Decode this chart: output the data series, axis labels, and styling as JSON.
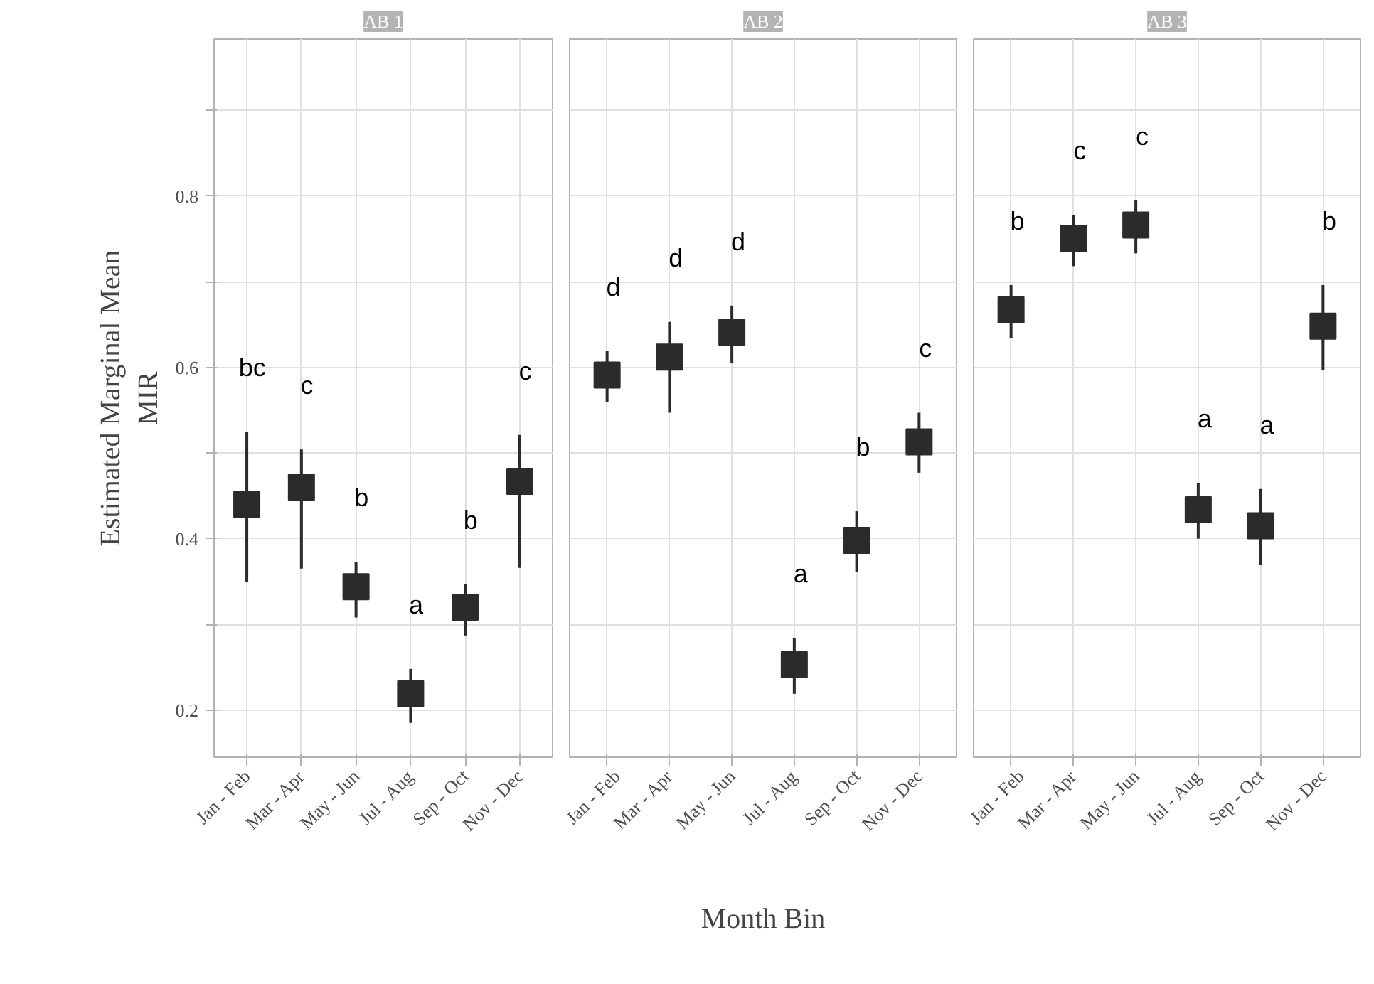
{
  "chart_data": [
    {
      "type": "scatter",
      "title": "AB 1",
      "ylabel": "Estimated Marginal Mean\nMIR",
      "categories": [
        "Jan - Feb",
        "Mar - Apr",
        "May - Jun",
        "Jul - Aug",
        "Sep - Oct",
        "Nov - Dec"
      ],
      "series": [
        {
          "color": "#2b2b2b",
          "values": [
            0.44,
            0.46,
            0.344,
            0.219,
            0.32,
            0.467
          ],
          "errors": [
            [
              0.35,
              0.525
            ],
            [
              0.365,
              0.504
            ],
            [
              0.308,
              0.373
            ],
            [
              0.185,
              0.248
            ],
            [
              0.287,
              0.347
            ],
            [
              0.366,
              0.521
            ]
          ]
        }
      ],
      "marker": "square",
      "ylim": [
        0.145,
        0.983
      ],
      "yticks": [
        0.2,
        0.4,
        0.6,
        0.8,
        {
          "value": 0.3,
          "label": null
        },
        {
          "value": 0.5,
          "label": null
        },
        {
          "value": 0.7,
          "label": null
        },
        {
          "value": 0.9,
          "label": null
        }
      ],
      "grid": true,
      "annotations": [
        "bc",
        "c",
        "b",
        "a",
        "b",
        "c"
      ]
    },
    {
      "type": "scatter",
      "title": "AB 2",
      "xlabel": "Month Bin",
      "categories": [
        "Jan - Feb",
        "Mar - Apr",
        "May - Jun",
        "Jul - Aug",
        "Sep - Oct",
        "Nov - Dec"
      ],
      "series": [
        {
          "color": "#2b2b2b",
          "values": [
            0.591,
            0.612,
            0.641,
            0.253,
            0.398,
            0.513
          ],
          "errors": [
            [
              0.559,
              0.619
            ],
            [
              0.547,
              0.653
            ],
            [
              0.605,
              0.672
            ],
            [
              0.219,
              0.284
            ],
            [
              0.361,
              0.432
            ],
            [
              0.477,
              0.547
            ]
          ]
        }
      ],
      "marker": "square",
      "ylim": [
        0.145,
        0.983
      ],
      "yticks": [
        0.2,
        0.4,
        0.6,
        0.8,
        {
          "value": 0.3,
          "label": null
        },
        {
          "value": 0.5,
          "label": null
        },
        {
          "value": 0.7,
          "label": null
        },
        {
          "value": 0.9,
          "label": null
        }
      ],
      "grid": true,
      "tick_labels": "x",
      "annotations": [
        "d",
        "d",
        "d",
        "a",
        "b",
        "c"
      ]
    },
    {
      "type": "scatter",
      "title": "AB 3",
      "categories": [
        "Jan - Feb",
        "Mar - Apr",
        "May - Jun",
        "Jul - Aug",
        "Sep - Oct",
        "Nov - Dec"
      ],
      "series": [
        {
          "color": "#2b2b2b",
          "values": [
            0.667,
            0.75,
            0.766,
            0.434,
            0.415,
            0.648
          ],
          "errors": [
            [
              0.634,
              0.696
            ],
            [
              0.718,
              0.778
            ],
            [
              0.733,
              0.795
            ],
            [
              0.4,
              0.465
            ],
            [
              0.369,
              0.458
            ],
            [
              0.597,
              0.696
            ]
          ]
        }
      ],
      "marker": "square",
      "ylim": [
        0.145,
        0.983
      ],
      "yticks": [
        0.2,
        0.4,
        0.6,
        0.8,
        {
          "value": 0.3,
          "label": null
        },
        {
          "value": 0.5,
          "label": null
        },
        {
          "value": 0.7,
          "label": null
        },
        {
          "value": 0.9,
          "label": null
        }
      ],
      "grid": true,
      "tick_labels": "x",
      "annotations": [
        "b",
        "c",
        "c",
        "a",
        "a",
        "b"
      ]
    }
  ]
}
